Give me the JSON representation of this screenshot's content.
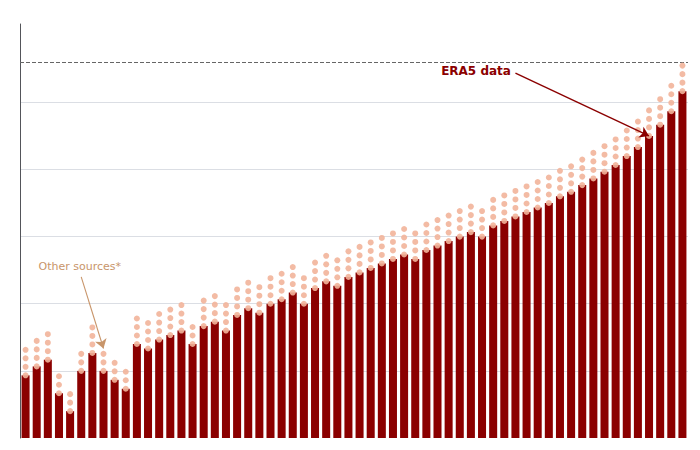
{
  "chart_data": {
    "type": "bar",
    "categories": [
      null,
      null,
      null,
      null,
      null,
      null,
      null,
      null,
      null,
      null,
      null,
      null,
      null,
      null,
      null,
      null,
      null,
      null,
      null,
      null,
      null,
      null,
      null,
      null,
      null,
      null,
      null,
      null,
      null,
      null,
      null,
      null,
      null,
      null,
      null,
      null,
      null,
      null,
      null,
      null,
      null,
      null,
      null,
      null,
      null,
      null,
      null,
      null,
      null,
      null,
      null,
      null,
      null,
      null,
      null,
      null,
      null,
      null,
      null,
      null
    ],
    "series": [
      {
        "type": "bar",
        "color": "#8B0000",
        "values": [
          0.28,
          0.32,
          0.35,
          0.2,
          0.12,
          0.3,
          0.38,
          0.3,
          0.26,
          0.22,
          0.42,
          0.4,
          0.44,
          0.46,
          0.48,
          0.42,
          0.5,
          0.52,
          0.48,
          0.55,
          0.58,
          0.56,
          0.6,
          0.62,
          0.65,
          0.6,
          0.67,
          0.7,
          0.68,
          0.72,
          0.74,
          0.76,
          0.78,
          0.8,
          0.82,
          0.8,
          0.84,
          0.86,
          0.88,
          0.9,
          0.92,
          0.9,
          0.95,
          0.97,
          0.99,
          1.01,
          1.03,
          1.05,
          1.08,
          1.1,
          1.13,
          1.16,
          1.19,
          1.22,
          1.26,
          1.3,
          1.35,
          1.4,
          1.46,
          1.55
        ]
      },
      {
        "type": "scatter",
        "color": "#F2B49A",
        "values": [
          0.28,
          0.32,
          0.35,
          0.2,
          0.12,
          0.3,
          0.38,
          0.3,
          0.26,
          0.22,
          0.42,
          0.4,
          0.44,
          0.46,
          0.48,
          0.42,
          0.5,
          0.52,
          0.48,
          0.55,
          0.58,
          0.56,
          0.6,
          0.62,
          0.65,
          0.6,
          0.67,
          0.7,
          0.68,
          0.72,
          0.74,
          0.76,
          0.78,
          0.8,
          0.82,
          0.8,
          0.84,
          0.86,
          0.88,
          0.9,
          0.92,
          0.9,
          0.95,
          0.97,
          0.99,
          1.01,
          1.03,
          1.05,
          1.08,
          1.1,
          1.13,
          1.16,
          1.19,
          1.22,
          1.26,
          1.3,
          1.35,
          1.4,
          1.46,
          1.55
        ]
      },
      {
        "type": "scatter",
        "color": "#F2B49A",
        "values": [
          0.318,
          0.358,
          0.388,
          0.238,
          0.158,
          0.338,
          0.418,
          0.338,
          0.298,
          0.258,
          0.458,
          0.438,
          0.478,
          0.498,
          0.518,
          0.458,
          0.538,
          0.558,
          0.518,
          0.588,
          0.618,
          0.598,
          0.638,
          0.658,
          0.688,
          0.638,
          0.708,
          0.738,
          0.718,
          0.758,
          0.778,
          0.798,
          0.818,
          0.838,
          0.858,
          0.838,
          0.878,
          0.898,
          0.918,
          0.938,
          0.958,
          0.938,
          0.988,
          1.008,
          1.028,
          1.048,
          1.068,
          1.088,
          1.118,
          1.138,
          1.168,
          1.198,
          1.228,
          1.258,
          1.298,
          1.338,
          1.388,
          1.438,
          1.498,
          1.588
        ]
      },
      {
        "type": "scatter",
        "color": "#F2B49A",
        "values": [
          0.356,
          0.396,
          0.426,
          0.276,
          0.196,
          0.376,
          0.456,
          0.376,
          0.336,
          0.296,
          0.496,
          0.476,
          0.516,
          0.536,
          0.556,
          0.496,
          0.576,
          0.596,
          0.556,
          0.626,
          0.656,
          0.636,
          0.676,
          0.696,
          0.726,
          0.676,
          0.746,
          0.776,
          0.756,
          0.796,
          0.816,
          0.836,
          0.856,
          0.876,
          0.896,
          0.876,
          0.916,
          0.936,
          0.956,
          0.976,
          0.996,
          0.976,
          1.026,
          1.046,
          1.066,
          1.086,
          1.106,
          1.126,
          1.156,
          1.176,
          1.206,
          1.236,
          1.266,
          1.296,
          1.336,
          1.376,
          1.426,
          1.476,
          1.536,
          1.626
        ]
      },
      {
        "type": "scatter",
        "color": "#F2B49A",
        "values": [
          0.394,
          0.434,
          0.464,
          null,
          null,
          null,
          0.494,
          null,
          null,
          null,
          0.534,
          0.514,
          0.554,
          0.574,
          0.594,
          null,
          0.614,
          0.634,
          0.594,
          0.664,
          0.694,
          0.674,
          0.714,
          0.734,
          0.764,
          0.714,
          0.784,
          0.814,
          0.794,
          0.834,
          0.854,
          0.874,
          0.894,
          0.914,
          0.934,
          0.914,
          0.954,
          0.974,
          0.994,
          1.014,
          1.034,
          1.014,
          1.064,
          1.084,
          1.104,
          1.124,
          1.144,
          1.164,
          1.194,
          1.214,
          1.244,
          1.274,
          1.304,
          1.334,
          1.374,
          1.414,
          1.464,
          1.514,
          1.574,
          1.664
        ]
      }
    ],
    "hline": {
      "value": 1.68,
      "color": "#666666",
      "line_style": "dashed"
    },
    "annotations": [
      {
        "text": "ERA5 data",
        "color": "#8B0000"
      },
      {
        "text": "Other sources*",
        "color": "#C8956A"
      }
    ],
    "ylim": [
      0,
      1.85
    ],
    "yticks": [
      0.3,
      0.6,
      0.9,
      1.2,
      1.5
    ],
    "grid": true,
    "tick_labels": false
  }
}
